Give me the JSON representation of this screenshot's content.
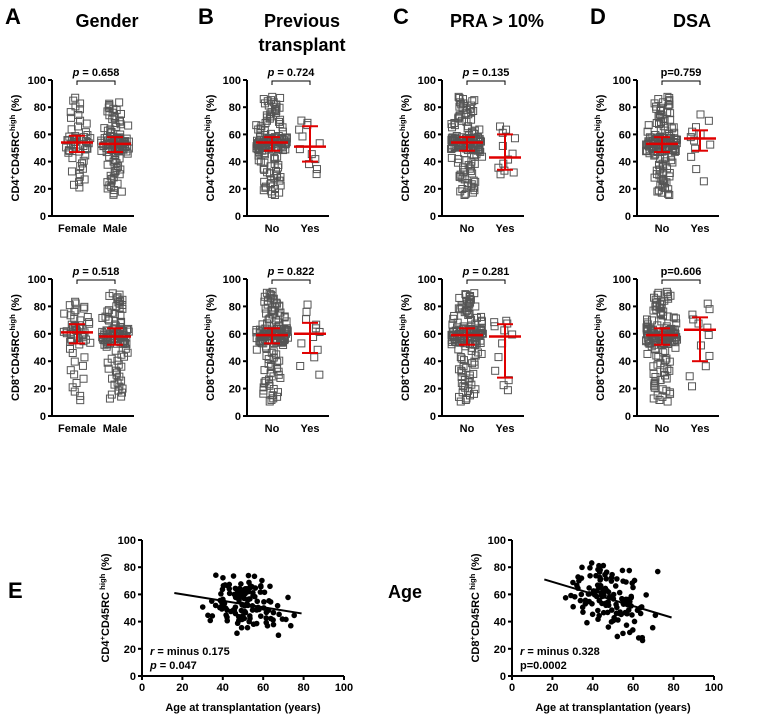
{
  "colors": {
    "median_bar": "#e00000",
    "axis": "#000000",
    "open_marker": "#555555",
    "filled_marker": "#000000"
  },
  "chart_data": [
    {
      "type": "scatter",
      "subtype": "dot-plot-median-iqr",
      "panel": "A",
      "title": [
        "Gender"
      ],
      "ylim": [
        0,
        100
      ],
      "yticks": [
        0,
        20,
        40,
        60,
        80,
        100
      ],
      "rows": [
        {
          "ylabel": [
            "CD4",
            "+",
            "CD45RC",
            "high",
            " (%)"
          ],
          "p_label": [
            "p",
            " = 0.658"
          ],
          "groups": [
            {
              "label": "Female",
              "median": 54,
              "q1": 47,
              "q3": 59,
              "min": 20,
              "max": 88
            },
            {
              "label": "Male",
              "median": 53,
              "q1": 47,
              "q3": 58,
              "min": 15,
              "max": 84
            }
          ]
        },
        {
          "ylabel": [
            "CD8",
            "+",
            "CD45RC",
            "high",
            " (%)"
          ],
          "p_label": [
            "p",
            " = 0.518"
          ],
          "groups": [
            {
              "label": "Female",
              "median": 61,
              "q1": 53,
              "q3": 67,
              "min": 10,
              "max": 84
            },
            {
              "label": "Male",
              "median": 58,
              "q1": 52,
              "q3": 64,
              "min": 12,
              "max": 90
            }
          ]
        }
      ]
    },
    {
      "type": "scatter",
      "subtype": "dot-plot-median-iqr",
      "panel": "B",
      "title": [
        "Previous",
        "transplant"
      ],
      "ylim": [
        0,
        100
      ],
      "yticks": [
        0,
        20,
        40,
        60,
        80,
        100
      ],
      "rows": [
        {
          "ylabel": [
            "CD4",
            "+",
            "CD45RC",
            "high",
            " (%)"
          ],
          "p_label": [
            "p",
            " = 0.724"
          ],
          "groups": [
            {
              "label": "No",
              "median": 54,
              "q1": 48,
              "q3": 58,
              "min": 15,
              "max": 88
            },
            {
              "label": "Yes",
              "median": 51,
              "q1": 40,
              "q3": 66,
              "min": 29,
              "max": 71
            }
          ]
        },
        {
          "ylabel": [
            "CD8",
            "+",
            "CD45RC",
            "high",
            " (%)"
          ],
          "p_label": [
            "p",
            " = 0.822"
          ],
          "groups": [
            {
              "label": "No",
              "median": 59,
              "q1": 53,
              "q3": 64,
              "min": 10,
              "max": 91
            },
            {
              "label": "Yes",
              "median": 60,
              "q1": 46,
              "q3": 68,
              "min": 27,
              "max": 84
            }
          ]
        }
      ]
    },
    {
      "type": "scatter",
      "subtype": "dot-plot-median-iqr",
      "panel": "C",
      "title": [
        "PRA > 10%"
      ],
      "ylim": [
        0,
        100
      ],
      "yticks": [
        0,
        20,
        40,
        60,
        80,
        100
      ],
      "rows": [
        {
          "ylabel": [
            "CD4",
            "+",
            "CD45RC",
            "high",
            " (%)"
          ],
          "p_label": [
            "p",
            " = 0.135"
          ],
          "groups": [
            {
              "label": "No",
              "median": 54,
              "q1": 48,
              "q3": 58,
              "min": 15,
              "max": 88
            },
            {
              "label": "Yes",
              "median": 43,
              "q1": 34,
              "q3": 60,
              "min": 30,
              "max": 67
            }
          ]
        },
        {
          "ylabel": [
            "CD8",
            "+",
            "CD45RC",
            "high",
            " (%)"
          ],
          "p_label": [
            "p",
            " = 0.281"
          ],
          "groups": [
            {
              "label": "No",
              "median": 59,
              "q1": 52,
              "q3": 64,
              "min": 10,
              "max": 90
            },
            {
              "label": "Yes",
              "median": 58,
              "q1": 28,
              "q3": 67,
              "min": 17,
              "max": 70
            }
          ]
        }
      ]
    },
    {
      "type": "scatter",
      "subtype": "dot-plot-median-iqr",
      "panel": "D",
      "title": [
        "DSA"
      ],
      "ylim": [
        0,
        100
      ],
      "yticks": [
        0,
        20,
        40,
        60,
        80,
        100
      ],
      "rows": [
        {
          "ylabel": [
            "CD4",
            "+",
            "CD45RC",
            "high",
            " (%)"
          ],
          "p_label": [
            "",
            "p=0.759"
          ],
          "groups": [
            {
              "label": "No",
              "median": 53,
              "q1": 47,
              "q3": 58,
              "min": 15,
              "max": 88
            },
            {
              "label": "Yes",
              "median": 57,
              "q1": 48,
              "q3": 63,
              "min": 21,
              "max": 77
            }
          ]
        },
        {
          "ylabel": [
            "CD8",
            "+",
            "CD45RC",
            "high",
            " (%)"
          ],
          "p_label": [
            "",
            "p=0.606"
          ],
          "groups": [
            {
              "label": "No",
              "median": 59,
              "q1": 52,
              "q3": 64,
              "min": 10,
              "max": 91
            },
            {
              "label": "Yes",
              "median": 63,
              "q1": 40,
              "q3": 72,
              "min": 18,
              "max": 84
            }
          ]
        }
      ]
    },
    {
      "type": "scatter",
      "panel": "E",
      "title": [
        "Age"
      ],
      "plots": [
        {
          "ylabel": [
            "CD4",
            "+",
            "CD45RC",
            " high",
            " (%)"
          ],
          "xlabel": "Age at transplantation (years)",
          "xlim": [
            0,
            100
          ],
          "ylim": [
            0,
            100
          ],
          "xticks": [
            0,
            20,
            40,
            60,
            80,
            100
          ],
          "yticks": [
            0,
            20,
            40,
            60,
            80,
            100
          ],
          "regression": {
            "x": [
              16,
              79
            ],
            "y": [
              61,
              46
            ]
          },
          "stats": [
            [
              "r",
              " = minus 0.175"
            ],
            [
              "p",
              " = 0.047"
            ]
          ],
          "spread": 15
        },
        {
          "ylabel": [
            "CD8",
            "+",
            "CD45RC",
            " high",
            " (%)"
          ],
          "xlabel": "Age at transplantation (years)",
          "xlim": [
            0,
            100
          ],
          "ylim": [
            0,
            100
          ],
          "xticks": [
            0,
            20,
            40,
            60,
            80,
            100
          ],
          "yticks": [
            0,
            20,
            40,
            60,
            80,
            100
          ],
          "regression": {
            "x": [
              16,
              79
            ],
            "y": [
              71,
              43
            ]
          },
          "stats": [
            [
              "r",
              " = minus 0.328"
            ],
            [
              "",
              "p=0.0002"
            ]
          ],
          "spread": 17
        }
      ]
    }
  ]
}
